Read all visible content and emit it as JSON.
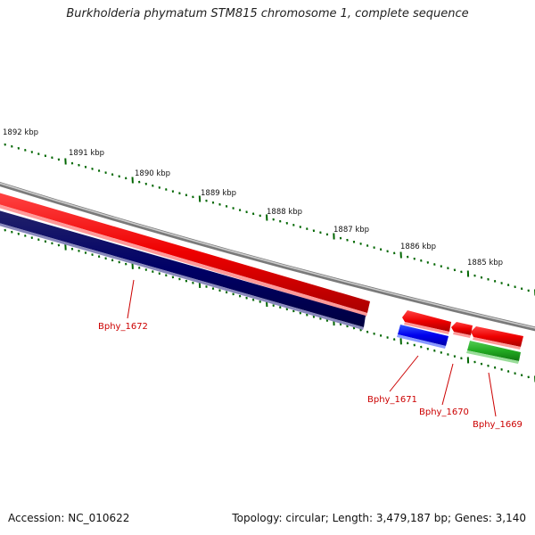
{
  "title": "Burkholderia phymatum STM815 chromosome 1, complete sequence",
  "footer": {
    "accession": "Accession: NC_010622",
    "summary": "Topology: circular; Length: 3,479,187 bp; Genes: 3,140"
  },
  "scale_labels": [
    "1892 kbp",
    "1891 kbp",
    "1890 kbp",
    "1889 kbp",
    "1888 kbp",
    "1887 kbp",
    "1886 kbp",
    "1885 kbp"
  ],
  "genes": [
    {
      "name": "Bphy_1672",
      "strand": "reverse",
      "color": "#000066"
    },
    {
      "name": "Bphy_1671",
      "strand": "reverse",
      "color": "#0000ff"
    },
    {
      "name": "Bphy_1670",
      "strand": "forward",
      "color": "#ff0000"
    },
    {
      "name": "Bphy_1669",
      "strand": "reverse",
      "color": "#00aa00"
    }
  ],
  "colors": {
    "backbone": "#888888",
    "forward_cds": "#ff0000",
    "reverse_cds_dark": "#000066",
    "reverse_cds_blue": "#0000ff",
    "reverse_cds_green": "#33bb33",
    "tick": "#006600",
    "label": "#cc0000"
  }
}
